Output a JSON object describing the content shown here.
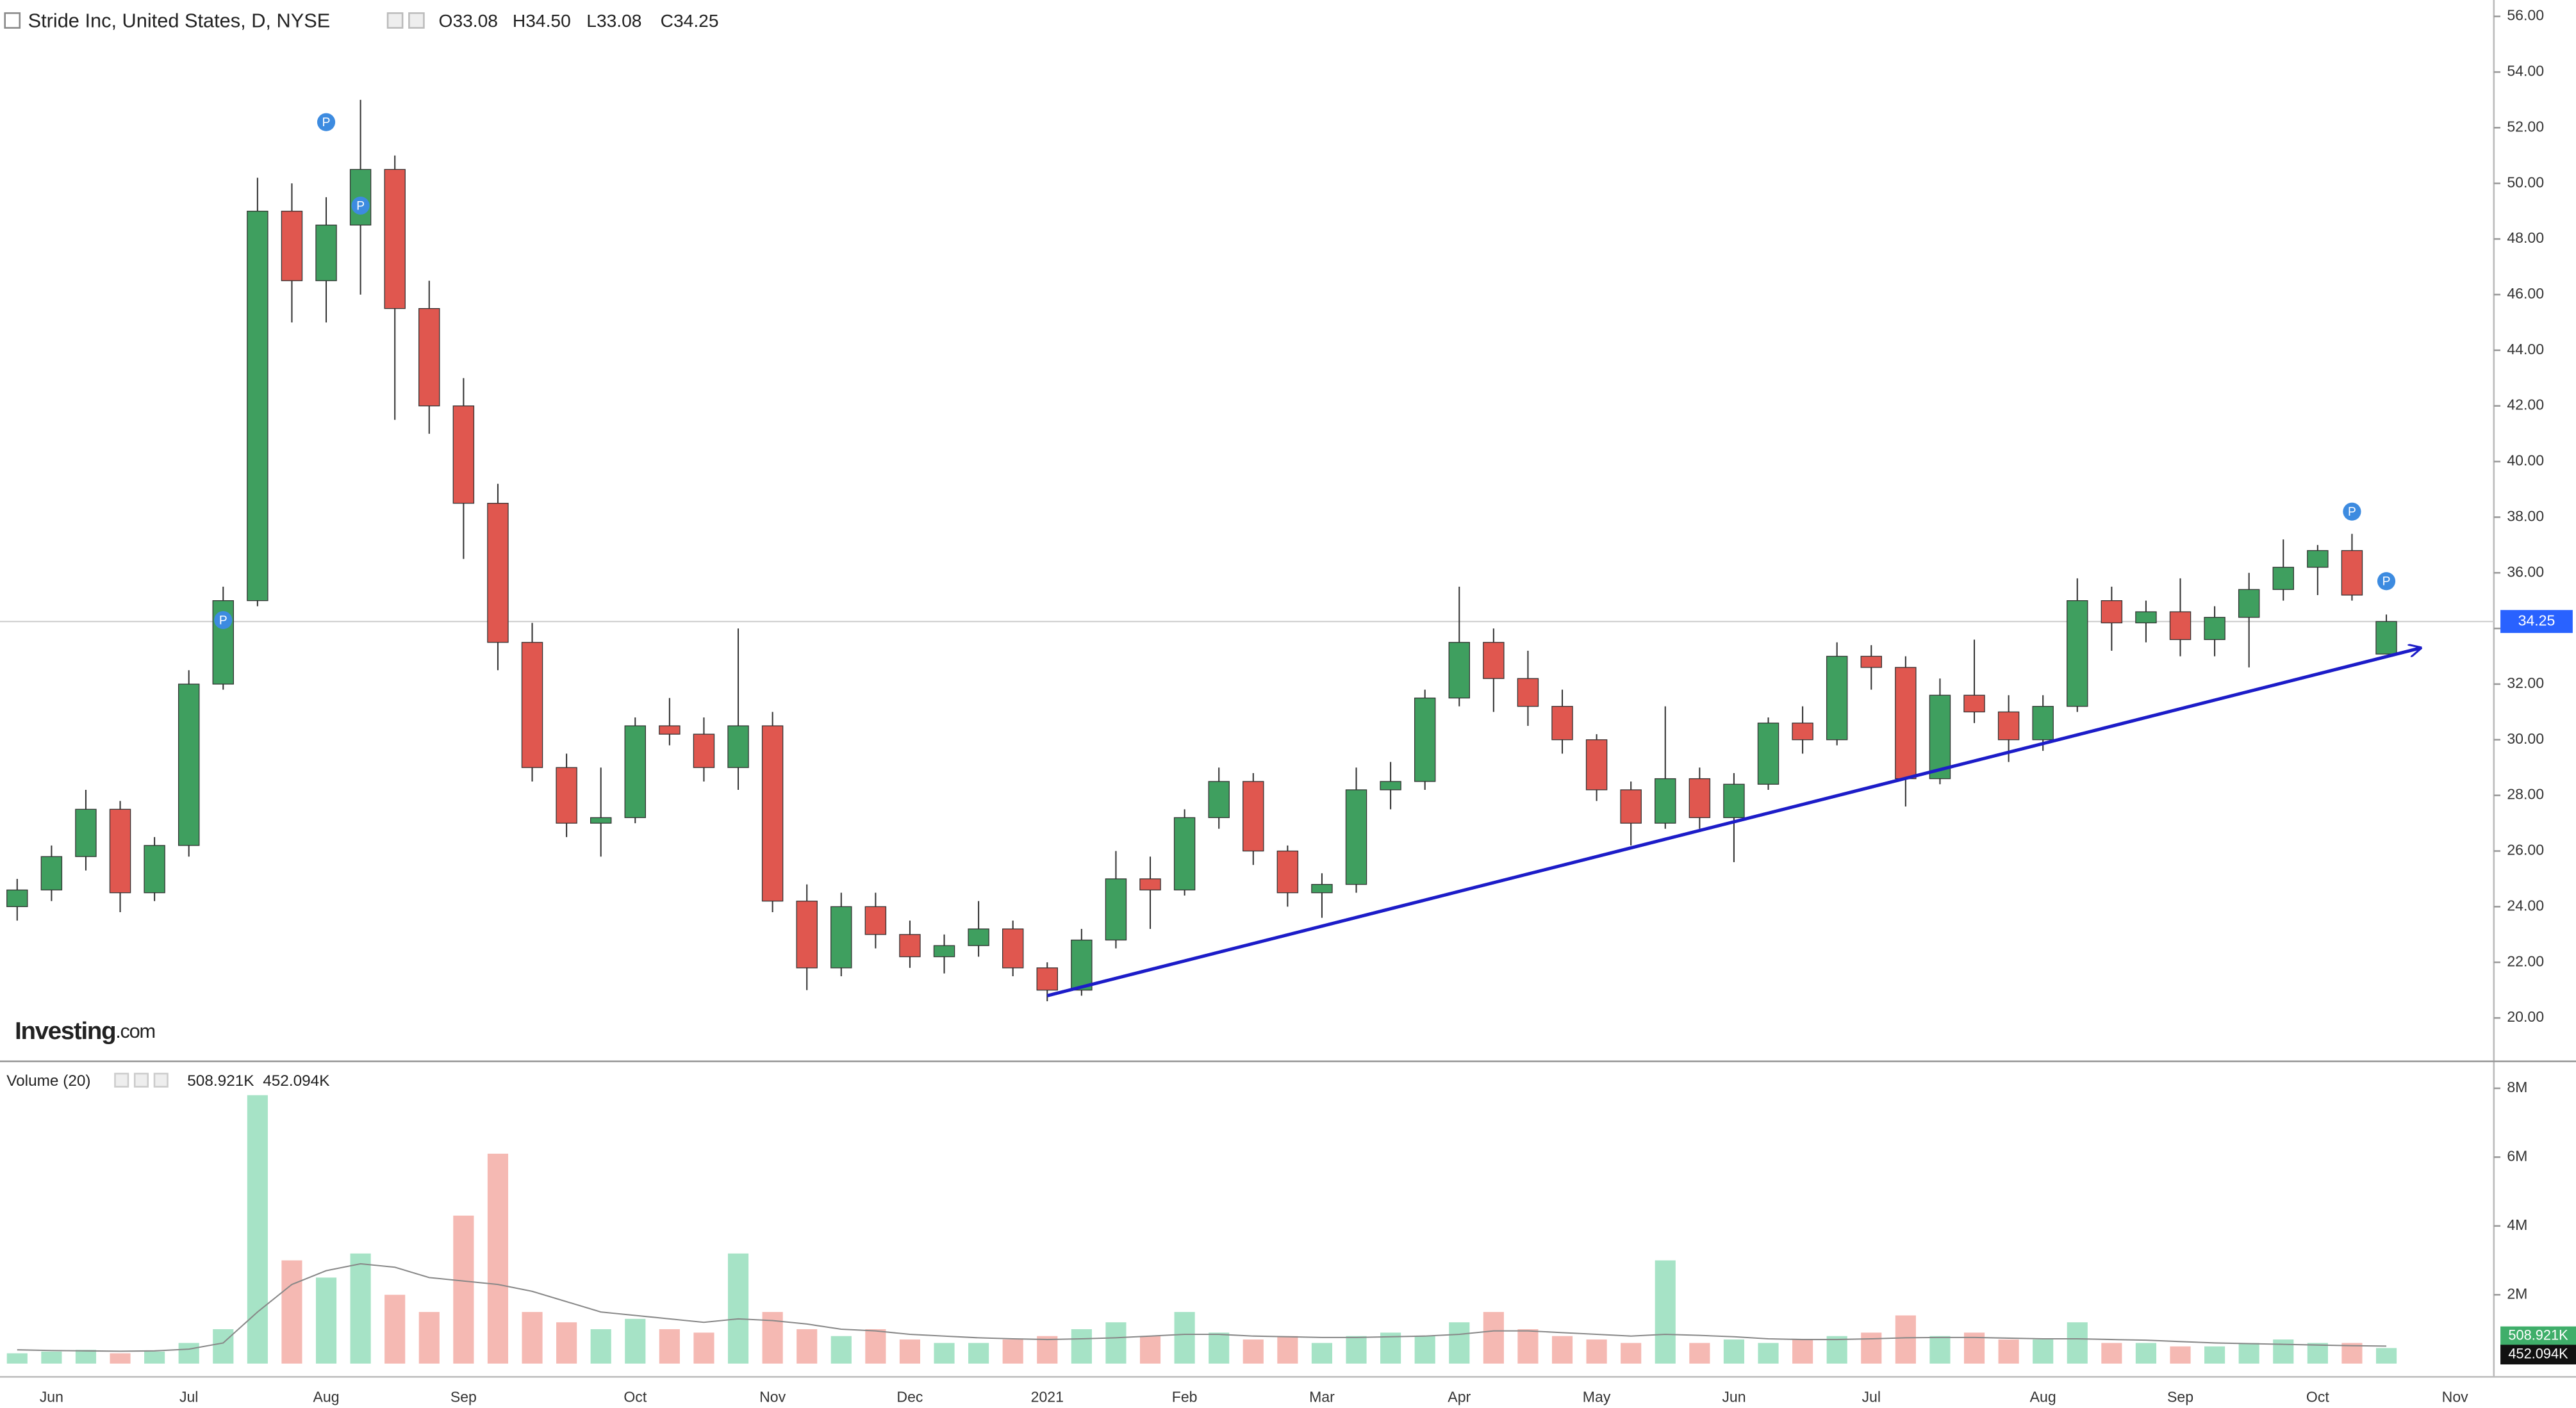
{
  "chart_data": {
    "type": "candlestick",
    "title": "Stride Inc, United States, D, NYSE",
    "ohlc_header": {
      "open": "O33.08",
      "high": "H34.50",
      "low": "L33.08",
      "close": "C34.25"
    },
    "watermark": "Investing",
    "watermark_suffix": ".com",
    "categories": [
      null,
      "Jun",
      null,
      null,
      null,
      "Jul",
      null,
      null,
      null,
      "Aug",
      null,
      null,
      null,
      "Sep",
      null,
      null,
      null,
      null,
      "Oct",
      null,
      null,
      null,
      "Nov",
      null,
      null,
      null,
      "Dec",
      null,
      null,
      null,
      "2021",
      null,
      null,
      null,
      "Feb",
      null,
      null,
      null,
      "Mar",
      null,
      null,
      null,
      "Apr",
      null,
      null,
      null,
      "May",
      null,
      null,
      null,
      "Jun",
      null,
      null,
      null,
      "Jul",
      null,
      null,
      null,
      null,
      "Aug",
      null,
      null,
      null,
      "Sep",
      null,
      null,
      null,
      "Oct",
      null,
      null,
      null,
      "Nov"
    ],
    "open": [
      24.0,
      24.6,
      25.8,
      27.5,
      24.5,
      26.2,
      32.0,
      35.0,
      49.0,
      46.5,
      48.5,
      50.5,
      45.5,
      42.0,
      38.5,
      33.5,
      29.0,
      27.0,
      27.2,
      30.5,
      30.2,
      29.0,
      30.5,
      24.2,
      21.8,
      24.0,
      23.0,
      22.2,
      22.6,
      23.2,
      21.8,
      21.0,
      22.8,
      25.0,
      24.6,
      27.2,
      28.5,
      26.0,
      24.5,
      24.8,
      28.2,
      28.5,
      31.5,
      33.5,
      32.2,
      31.2,
      30.0,
      28.2,
      27.0,
      28.6,
      27.2,
      28.4,
      30.6,
      30.0,
      33.0,
      32.6,
      28.6,
      31.6,
      31.0,
      30.0,
      31.2,
      35.0,
      34.2,
      34.6,
      33.6,
      34.4,
      35.4,
      36.2,
      36.8,
      33.08,
      null,
      null
    ],
    "high": [
      25.0,
      26.2,
      28.2,
      27.8,
      26.5,
      32.5,
      35.5,
      50.2,
      50.0,
      49.5,
      53.0,
      51.0,
      46.5,
      43.0,
      39.2,
      34.2,
      29.5,
      29.0,
      30.8,
      31.5,
      30.8,
      34.0,
      31.0,
      24.8,
      24.5,
      24.5,
      23.5,
      23.0,
      24.2,
      23.5,
      22.0,
      23.2,
      26.0,
      25.8,
      27.5,
      29.0,
      28.8,
      26.2,
      25.2,
      29.0,
      29.2,
      31.8,
      35.5,
      34.0,
      33.2,
      31.8,
      30.2,
      28.5,
      31.2,
      29.0,
      28.8,
      30.8,
      31.2,
      33.5,
      33.4,
      33.0,
      32.2,
      33.6,
      31.6,
      31.6,
      35.8,
      35.5,
      35.0,
      35.8,
      34.8,
      36.0,
      37.2,
      37.0,
      37.4,
      34.5,
      null,
      null
    ],
    "low": [
      23.5,
      24.2,
      25.3,
      23.8,
      24.2,
      25.8,
      31.8,
      34.8,
      45.0,
      45.0,
      46.0,
      41.5,
      41.0,
      36.5,
      32.5,
      28.5,
      26.5,
      25.8,
      27.0,
      29.8,
      28.5,
      28.2,
      23.8,
      21.0,
      21.5,
      22.5,
      21.8,
      21.6,
      22.2,
      21.5,
      20.6,
      20.8,
      22.5,
      23.2,
      24.4,
      26.8,
      25.5,
      24.0,
      23.6,
      24.5,
      27.5,
      28.2,
      31.2,
      31.0,
      30.5,
      29.5,
      27.8,
      26.2,
      26.8,
      26.8,
      25.6,
      28.2,
      29.5,
      29.8,
      31.8,
      27.6,
      28.4,
      30.6,
      29.2,
      29.6,
      31.0,
      33.2,
      33.5,
      33.0,
      33.0,
      32.6,
      35.0,
      35.2,
      35.0,
      33.08,
      null,
      null
    ],
    "close": [
      24.6,
      25.8,
      27.5,
      24.5,
      26.2,
      32.0,
      35.0,
      49.0,
      46.5,
      48.5,
      50.5,
      45.5,
      42.0,
      38.5,
      33.5,
      29.0,
      27.0,
      27.2,
      30.5,
      30.2,
      29.0,
      30.5,
      24.2,
      21.8,
      24.0,
      23.0,
      22.2,
      22.6,
      23.2,
      21.8,
      21.0,
      22.8,
      25.0,
      24.6,
      27.2,
      28.5,
      26.0,
      24.5,
      24.8,
      28.2,
      28.5,
      31.5,
      33.5,
      32.2,
      31.2,
      30.0,
      28.2,
      27.0,
      28.6,
      27.2,
      28.4,
      30.6,
      30.0,
      33.0,
      32.6,
      28.6,
      31.6,
      31.0,
      30.0,
      31.2,
      35.0,
      34.2,
      34.6,
      33.6,
      34.4,
      35.4,
      36.2,
      36.8,
      35.2,
      34.25,
      null,
      null
    ],
    "up_color": "#3f9f5f",
    "down_color": "#e0574f",
    "ylim": [
      18.47,
      56.59
    ],
    "yticks": [
      {
        "value": 20,
        "label": "20.00"
      },
      {
        "value": 22,
        "label": "22.00"
      },
      {
        "value": 24,
        "label": "24.00"
      },
      {
        "value": 26,
        "label": "26.00"
      },
      {
        "value": 28,
        "label": "28.00"
      },
      {
        "value": 30,
        "label": "30.00"
      },
      {
        "value": 32,
        "label": "32.00"
      },
      {
        "value": 34,
        "label": "34.00"
      },
      {
        "value": 36,
        "label": "36.00"
      },
      {
        "value": 38,
        "label": "38.00"
      },
      {
        "value": 40,
        "label": "40.00"
      },
      {
        "value": 42,
        "label": "42.00"
      },
      {
        "value": 44,
        "label": "44.00"
      },
      {
        "value": 46,
        "label": "46.00"
      },
      {
        "value": 48,
        "label": "48.00"
      },
      {
        "value": 50,
        "label": "50.00"
      },
      {
        "value": 52,
        "label": "52.00"
      },
      {
        "value": 54,
        "label": "54.00"
      },
      {
        "value": 56,
        "label": "56.00"
      }
    ],
    "grid": false,
    "last_price": 34.25,
    "last_price_color": "#2962ff",
    "trend_line": {
      "start_index": 30,
      "start_price": 20.8,
      "end_index": 70,
      "end_price": 33.3,
      "color": "#1c1cc8"
    },
    "markers": [
      {
        "index": 6,
        "price": 34.3,
        "label": "P"
      },
      {
        "index": 9,
        "price": 52.2,
        "label": "P"
      },
      {
        "index": 10,
        "price": 49.2,
        "label": "P"
      },
      {
        "index": 68,
        "price": 38.2,
        "label": "P"
      },
      {
        "index": 69,
        "price": 35.7,
        "label": "P"
      }
    ],
    "marker_color": "#3d8be0",
    "volume": {
      "title": "Volume (20)",
      "ma_label": "508.921K",
      "value_label": "452.094K",
      "values": [
        300000,
        350000,
        400000,
        300000,
        350000,
        600000,
        1000000,
        7800000,
        3000000,
        2500000,
        3200000,
        2000000,
        1500000,
        4300000,
        6100000,
        1500000,
        1200000,
        1000000,
        1300000,
        1000000,
        900000,
        3200000,
        1500000,
        1000000,
        800000,
        1000000,
        700000,
        600000,
        600000,
        700000,
        800000,
        1000000,
        1200000,
        800000,
        1500000,
        900000,
        700000,
        800000,
        600000,
        800000,
        900000,
        800000,
        1200000,
        1500000,
        1000000,
        800000,
        700000,
        600000,
        3000000,
        600000,
        700000,
        600000,
        700000,
        800000,
        900000,
        1400000,
        800000,
        900000,
        700000,
        700000,
        1200000,
        600000,
        600000,
        500000,
        500000,
        600000,
        700000,
        600000,
        600000,
        452094,
        null,
        null
      ],
      "ma": [
        400000,
        380000,
        370000,
        360000,
        370000,
        420000,
        600000,
        1500000,
        2300000,
        2700000,
        2900000,
        2800000,
        2500000,
        2400000,
        2300000,
        2100000,
        1800000,
        1500000,
        1400000,
        1300000,
        1200000,
        1300000,
        1250000,
        1150000,
        1000000,
        950000,
        850000,
        800000,
        750000,
        720000,
        700000,
        720000,
        750000,
        800000,
        850000,
        850000,
        800000,
        780000,
        760000,
        760000,
        780000,
        800000,
        850000,
        950000,
        950000,
        900000,
        850000,
        800000,
        850000,
        820000,
        780000,
        720000,
        700000,
        700000,
        720000,
        750000,
        760000,
        760000,
        740000,
        720000,
        720000,
        700000,
        680000,
        640000,
        600000,
        580000,
        560000,
        540000,
        520000,
        508921,
        null,
        null
      ],
      "up_color": "#a6e3c6",
      "down_color": "#f5b9b3",
      "ma_color": "#888888",
      "ma_label_color": "#3fae6a",
      "value_label_color": "#111111",
      "ylim": [
        -290000,
        8760000
      ],
      "yticks": [
        {
          "value": 2000000,
          "label": "2M"
        },
        {
          "value": 4000000,
          "label": "4M"
        },
        {
          "value": 6000000,
          "label": "6M"
        },
        {
          "value": 8000000,
          "label": "8M"
        }
      ]
    }
  }
}
